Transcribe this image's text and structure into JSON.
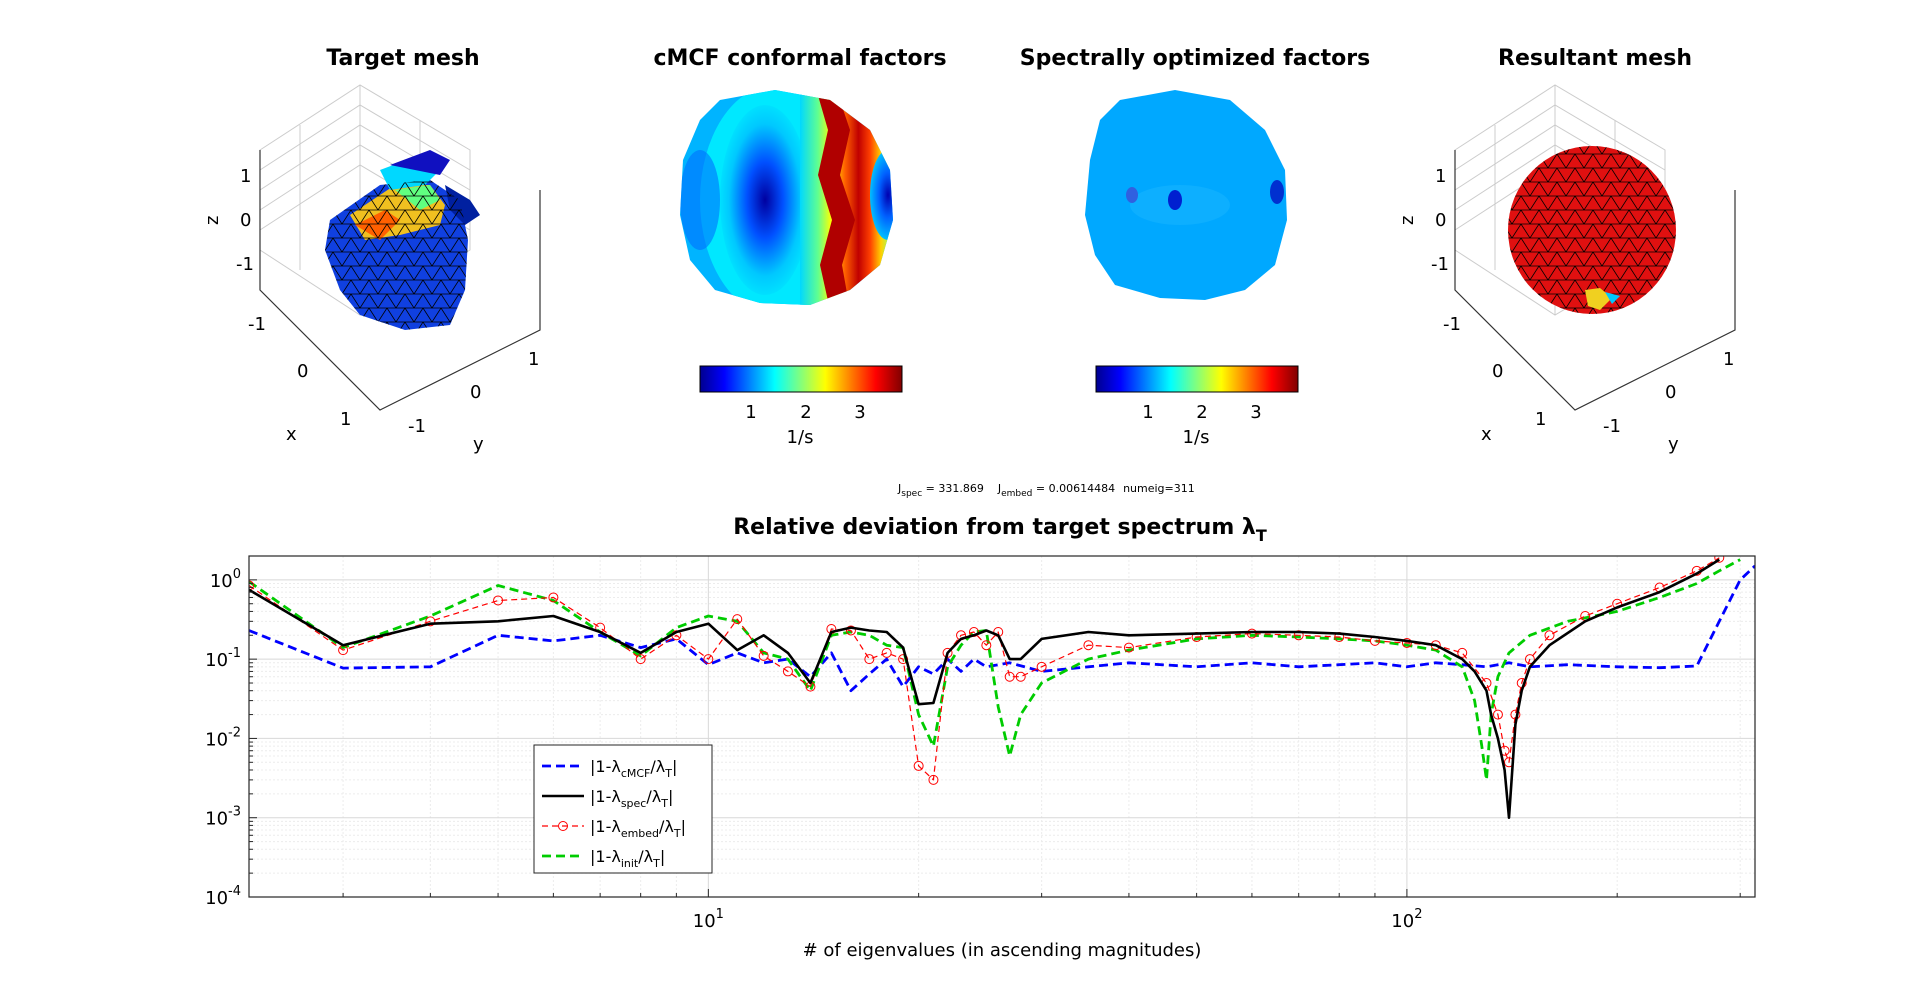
{
  "panels": {
    "target_title": "Target mesh",
    "cmcf_title": "cMCF conformal factors",
    "spectral_title": "Spectrally optimized factors",
    "result_title": "Resultant mesh",
    "mesh_axes": {
      "x_label": "x",
      "y_label": "y",
      "z_label": "z",
      "z_ticks": [
        "1",
        "0",
        "-1"
      ],
      "x_ticks": [
        "-1",
        "0",
        "1"
      ],
      "y_ticks": [
        "1",
        "0",
        "-1"
      ]
    },
    "colorbar": {
      "ticks": [
        "1",
        "2",
        "3"
      ],
      "unit": "1/s",
      "range": [
        0.2,
        3.7
      ]
    }
  },
  "stats": {
    "j_spec_sym": "J",
    "j_spec_sub": "spec",
    "j_spec_val": " = 331.869",
    "j_embed_sym": "J",
    "j_embed_sub": "embed",
    "j_embed_val": " = 0.00614484",
    "numeig": "numeig=311"
  },
  "chart_data": {
    "type": "line",
    "title": "Relative deviation from target spectrum λ",
    "title_sub": "T",
    "xlabel": "# of eigenvalues (in ascending magnitudes)",
    "ylabel": "",
    "x_scale": "log",
    "y_scale": "log",
    "xlim": [
      2.2,
      315
    ],
    "ylim": [
      0.0001,
      2
    ],
    "x_ticks": [
      {
        "value": 10,
        "base": "10",
        "exp": "1"
      },
      {
        "value": 100,
        "base": "10",
        "exp": "2"
      }
    ],
    "y_ticks": [
      {
        "value": 1,
        "base": "10",
        "exp": "0"
      },
      {
        "value": 0.1,
        "base": "10",
        "exp": "-1"
      },
      {
        "value": 0.01,
        "base": "10",
        "exp": "-2"
      },
      {
        "value": 0.001,
        "base": "10",
        "exp": "-3"
      },
      {
        "value": 0.0001,
        "base": "10",
        "exp": "-4"
      }
    ],
    "grid": true,
    "legend_position": "lower-left",
    "series": [
      {
        "name": "|1-λcMCF/λT|",
        "legend_main": "|1-λ",
        "legend_sub": "cMCF",
        "legend_mid": "/λ",
        "legend_sub2": "T",
        "legend_end": "|",
        "color": "#0000ff",
        "style": "dashed",
        "x": [
          2.2,
          3,
          4,
          5,
          6,
          7,
          8,
          9,
          10,
          11,
          12,
          13,
          14,
          15,
          16,
          17,
          18,
          19,
          20,
          21,
          22,
          23,
          24,
          25,
          27,
          30,
          35,
          40,
          50,
          60,
          70,
          80,
          90,
          100,
          110,
          120,
          130,
          140,
          150,
          170,
          200,
          230,
          260,
          280,
          300,
          315
        ],
        "y": [
          0.23,
          0.077,
          0.08,
          0.2,
          0.17,
          0.2,
          0.14,
          0.18,
          0.085,
          0.12,
          0.09,
          0.1,
          0.06,
          0.12,
          0.04,
          0.065,
          0.1,
          0.045,
          0.08,
          0.065,
          0.1,
          0.07,
          0.1,
          0.08,
          0.09,
          0.07,
          0.08,
          0.09,
          0.08,
          0.09,
          0.08,
          0.085,
          0.09,
          0.08,
          0.09,
          0.085,
          0.08,
          0.09,
          0.08,
          0.085,
          0.08,
          0.078,
          0.082,
          0.3,
          1.0,
          1.5
        ]
      },
      {
        "name": "|1-λspec/λT|",
        "legend_main": "|1-λ",
        "legend_sub": "spec",
        "legend_mid": "/λ",
        "legend_sub2": "T",
        "legend_end": "|",
        "color": "#000000",
        "style": "solid",
        "x": [
          2.2,
          3,
          4,
          5,
          6,
          7,
          8,
          9,
          10,
          11,
          12,
          13,
          14,
          15,
          16,
          17,
          18,
          19,
          20,
          21,
          22,
          23,
          24,
          25,
          26,
          27,
          28,
          30,
          35,
          40,
          50,
          60,
          70,
          80,
          90,
          100,
          110,
          120,
          125,
          130,
          132,
          135,
          138,
          140,
          143,
          146,
          150,
          160,
          180,
          200,
          230,
          260,
          280
        ],
        "y": [
          0.75,
          0.15,
          0.28,
          0.3,
          0.35,
          0.22,
          0.12,
          0.22,
          0.28,
          0.13,
          0.2,
          0.12,
          0.05,
          0.22,
          0.25,
          0.23,
          0.22,
          0.14,
          0.027,
          0.028,
          0.12,
          0.18,
          0.2,
          0.23,
          0.2,
          0.1,
          0.1,
          0.18,
          0.22,
          0.2,
          0.21,
          0.22,
          0.22,
          0.21,
          0.19,
          0.17,
          0.15,
          0.1,
          0.07,
          0.04,
          0.02,
          0.01,
          0.004,
          0.001,
          0.015,
          0.04,
          0.08,
          0.15,
          0.3,
          0.45,
          0.7,
          1.2,
          1.8
        ]
      },
      {
        "name": "|1-λembed/λT|",
        "legend_main": "|1-λ",
        "legend_sub": "embed",
        "legend_mid": "/λ",
        "legend_sub2": "T",
        "legend_end": "|",
        "color": "#ff0000",
        "style": "dashed-circles",
        "x": [
          2.2,
          3,
          4,
          5,
          6,
          7,
          8,
          9,
          10,
          11,
          12,
          13,
          14,
          15,
          16,
          17,
          18,
          19,
          20,
          21,
          22,
          23,
          24,
          25,
          26,
          27,
          28,
          30,
          35,
          40,
          50,
          60,
          70,
          80,
          90,
          100,
          110,
          120,
          130,
          135,
          138,
          140,
          143,
          146,
          150,
          160,
          180,
          200,
          230,
          260,
          280
        ],
        "y": [
          0.85,
          0.13,
          0.3,
          0.55,
          0.6,
          0.25,
          0.1,
          0.2,
          0.1,
          0.32,
          0.11,
          0.07,
          0.045,
          0.24,
          0.23,
          0.1,
          0.12,
          0.1,
          0.0045,
          0.003,
          0.12,
          0.2,
          0.22,
          0.15,
          0.22,
          0.06,
          0.06,
          0.08,
          0.15,
          0.14,
          0.19,
          0.21,
          0.2,
          0.19,
          0.17,
          0.16,
          0.15,
          0.12,
          0.05,
          0.02,
          0.007,
          0.005,
          0.02,
          0.05,
          0.1,
          0.2,
          0.35,
          0.5,
          0.8,
          1.3,
          1.9
        ]
      },
      {
        "name": "|1-λinit/λT|",
        "legend_main": "|1-λ",
        "legend_sub": "init",
        "legend_mid": "/λ",
        "legend_sub2": "T",
        "legend_end": "|",
        "color": "#00cc00",
        "style": "dashed",
        "x": [
          2.2,
          3,
          4,
          5,
          6,
          7,
          8,
          9,
          10,
          11,
          12,
          13,
          14,
          15,
          16,
          17,
          18,
          19,
          20,
          21,
          22,
          23,
          24,
          25,
          26,
          27,
          28,
          30,
          35,
          40,
          50,
          60,
          70,
          80,
          90,
          100,
          110,
          120,
          125,
          128,
          130,
          132,
          135,
          140,
          150,
          170,
          200,
          230,
          260,
          280,
          300
        ],
        "y": [
          0.95,
          0.14,
          0.35,
          0.85,
          0.55,
          0.22,
          0.11,
          0.25,
          0.35,
          0.3,
          0.12,
          0.1,
          0.04,
          0.2,
          0.22,
          0.2,
          0.15,
          0.14,
          0.02,
          0.008,
          0.08,
          0.15,
          0.22,
          0.23,
          0.025,
          0.006,
          0.02,
          0.05,
          0.1,
          0.13,
          0.18,
          0.2,
          0.19,
          0.18,
          0.17,
          0.15,
          0.13,
          0.08,
          0.03,
          0.008,
          0.003,
          0.02,
          0.06,
          0.12,
          0.2,
          0.3,
          0.4,
          0.6,
          0.9,
          1.3,
          1.8
        ]
      }
    ]
  }
}
